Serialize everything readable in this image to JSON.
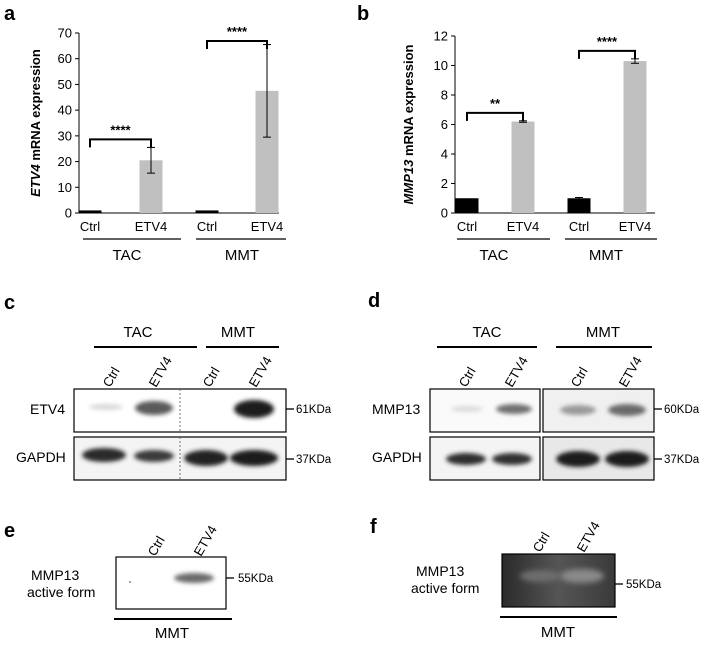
{
  "panels": {
    "a": {
      "letter": "a"
    },
    "b": {
      "letter": "b"
    },
    "c": {
      "letter": "c",
      "groups": [
        "TAC",
        "MMT"
      ],
      "lanes": [
        "Ctrl",
        "ETV4",
        "Ctrl",
        "ETV4"
      ],
      "rows": [
        {
          "label": "ETV4",
          "marker": "61KDa"
        },
        {
          "label": "GAPDH",
          "marker": "37KDa"
        }
      ]
    },
    "d": {
      "letter": "d",
      "groups": [
        "TAC",
        "MMT"
      ],
      "lanes": [
        "Ctrl",
        "ETV4",
        "Ctrl",
        "ETV4"
      ],
      "rows": [
        {
          "label": "MMP13",
          "marker": "60KDa"
        },
        {
          "label": "GAPDH",
          "marker": "37KDa"
        }
      ]
    },
    "e": {
      "letter": "e",
      "lanes": [
        "Ctrl",
        "ETV4"
      ],
      "label_line1": "MMP13",
      "label_line2": "active form",
      "marker": "55KDa",
      "group": "MMT"
    },
    "f": {
      "letter": "f",
      "lanes": [
        "Ctrl",
        "ETV4"
      ],
      "label_line1": "MMP13",
      "label_line2": "active form",
      "marker": "55KDa",
      "group": "MMT"
    }
  },
  "chart_data": [
    {
      "type": "bar",
      "panel": "a",
      "ylabel_gene": "ETV4",
      "ylabel_rest": " mRNA expression",
      "ylim": [
        0,
        70
      ],
      "yticks": [
        0,
        10,
        20,
        30,
        40,
        50,
        60,
        70
      ],
      "categories": [
        "Ctrl",
        "ETV4",
        "Ctrl",
        "ETV4"
      ],
      "groups": [
        {
          "name": "TAC",
          "categories": [
            0,
            1
          ]
        },
        {
          "name": "MMT",
          "categories": [
            2,
            3
          ]
        }
      ],
      "values": [
        1,
        20.5,
        1,
        47.5
      ],
      "errors": [
        0,
        5,
        0,
        18
      ],
      "colors": [
        "#000000",
        "#c0c0c0",
        "#000000",
        "#c0c0c0"
      ],
      "significance": [
        {
          "group": 0,
          "label": "****"
        },
        {
          "group": 1,
          "label": "****"
        }
      ]
    },
    {
      "type": "bar",
      "panel": "b",
      "ylabel_gene": "MMP13",
      "ylabel_rest": " mRNA expression",
      "ylim": [
        0,
        12
      ],
      "yticks": [
        0,
        2,
        4,
        6,
        8,
        10,
        12
      ],
      "categories": [
        "Ctrl",
        "ETV4",
        "Ctrl",
        "ETV4"
      ],
      "groups": [
        {
          "name": "TAC",
          "categories": [
            0,
            1
          ]
        },
        {
          "name": "MMT",
          "categories": [
            2,
            3
          ]
        }
      ],
      "values": [
        1,
        6.2,
        1,
        10.3
      ],
      "errors": [
        0,
        0.05,
        0.05,
        0.15
      ],
      "colors": [
        "#000000",
        "#c0c0c0",
        "#000000",
        "#c0c0c0"
      ],
      "significance": [
        {
          "group": 0,
          "label": "**"
        },
        {
          "group": 1,
          "label": "****"
        }
      ]
    }
  ]
}
